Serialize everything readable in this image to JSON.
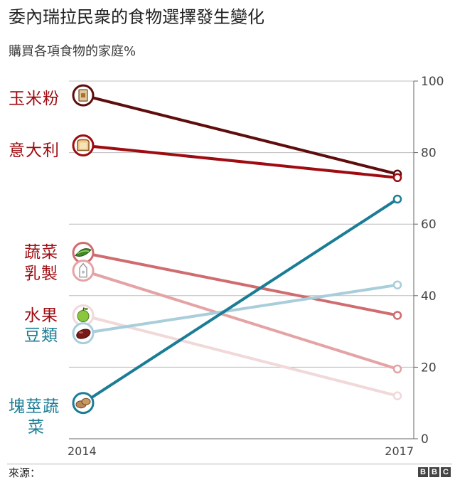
{
  "title": "委內瑞拉民衆的食物選擇發生變化",
  "subtitle": "購買各項食物的家庭%",
  "source": "來源：",
  "logo": [
    "B",
    "B",
    "C"
  ],
  "chart_data": {
    "type": "line",
    "x": [
      "2014",
      "2017"
    ],
    "ylim": [
      0,
      100
    ],
    "yticks": [
      0,
      20,
      40,
      60,
      80,
      100
    ],
    "grid": true,
    "series": [
      {
        "name": "玉米粉",
        "values": [
          96,
          74
        ],
        "color": "#5e0c0c",
        "icon": "cornmeal-bag-icon"
      },
      {
        "name": "意大利",
        "values": [
          82,
          73
        ],
        "color": "#9e0b10",
        "icon": "bread-slice-icon"
      },
      {
        "name": "蔬菜",
        "values": [
          52,
          34.5
        ],
        "color": "#cf6c6f",
        "icon": "pea-pod-icon"
      },
      {
        "name": "乳製",
        "values": [
          47,
          19.5
        ],
        "color": "#e4a3a5",
        "icon": "milk-carton-icon"
      },
      {
        "name": "水果",
        "values": [
          34.5,
          12
        ],
        "color": "#f1d8d9",
        "icon": "apple-icon"
      },
      {
        "name": "豆類",
        "values": [
          29.5,
          43
        ],
        "color": "#a8cddb",
        "icon": "bean-icon"
      },
      {
        "name": "塊莖蔬菜",
        "values": [
          10,
          67
        ],
        "color": "#1b7d95",
        "icon": "potato-icon"
      }
    ],
    "labels": [
      {
        "lines": [
          "玉米粉"
        ],
        "color": "#9e0b10"
      },
      {
        "lines": [
          "意大利"
        ],
        "color": "#9e0b10"
      },
      {
        "lines": [
          "蔬菜",
          "乳製"
        ],
        "color": "#9e0b10"
      },
      {
        "lines": [
          "水果"
        ],
        "color": "#9e0b10"
      },
      {
        "lines": [
          "豆類"
        ],
        "color": "#1b7d95"
      },
      {
        "lines": [
          "塊莖蔬",
          "菜"
        ],
        "color": "#1b7d95"
      }
    ]
  }
}
